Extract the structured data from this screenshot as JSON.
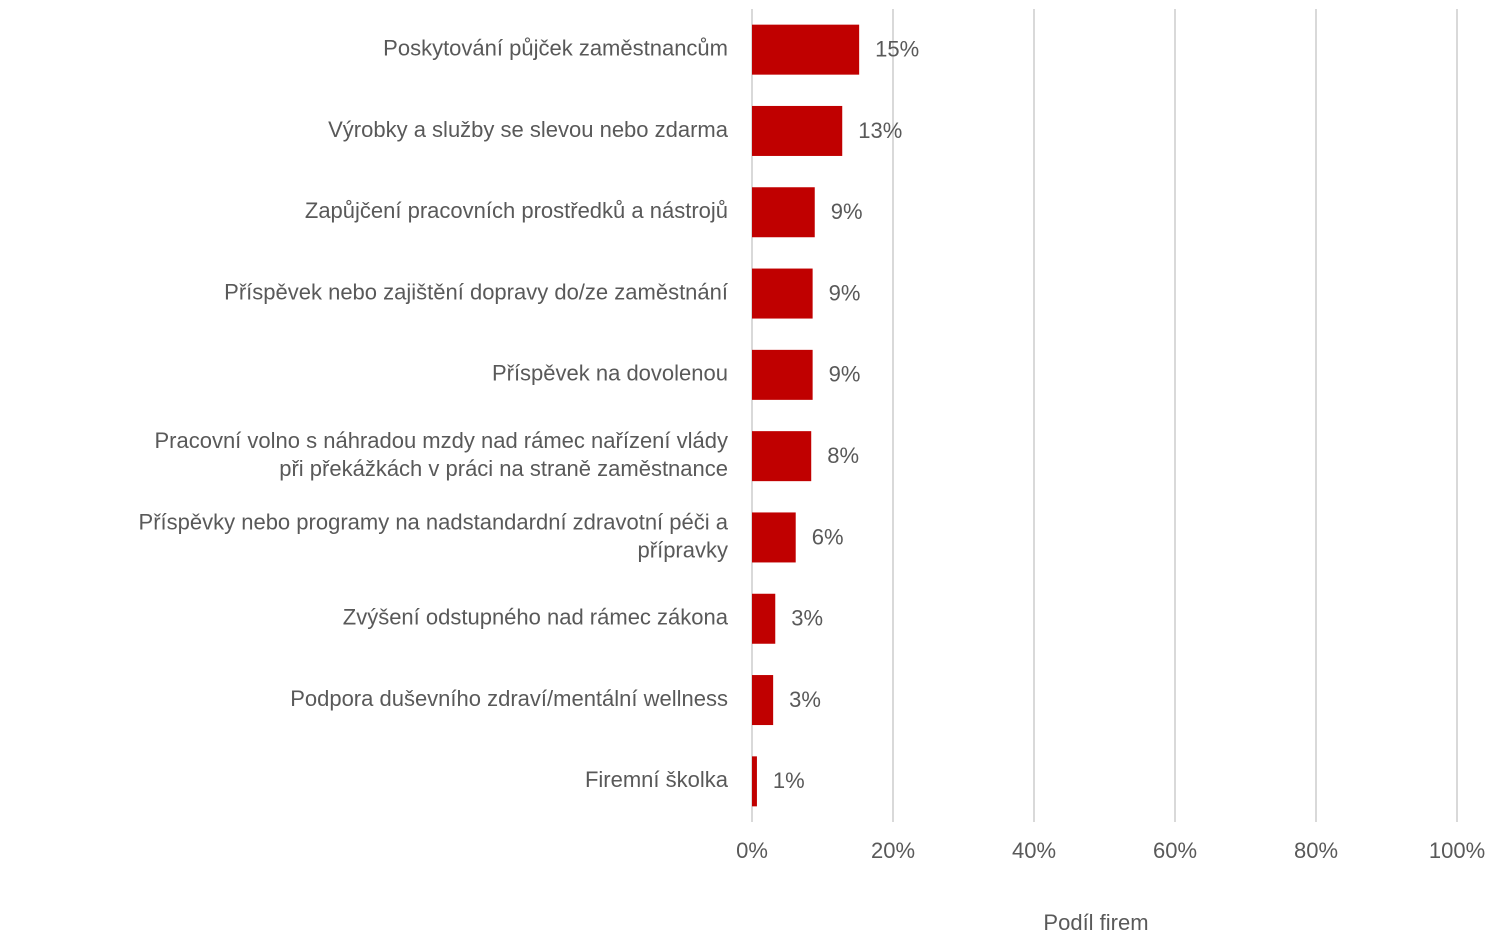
{
  "chart_data": {
    "type": "barh",
    "xlabel": "Podíl firem",
    "categories": [
      "Poskytování půjček zaměstnancům",
      "Výrobky a služby se slevou nebo zdarma",
      "Zapůjčení pracovních prostředků a nástrojů",
      "Příspěvek nebo zajištění dopravy do/ze zaměstnání",
      "Příspěvek na dovolenou",
      "Pracovní volno s náhradou mzdy nad rámec nařízení vlády\npři překážkách v práci na straně zaměstnance",
      "Příspěvky nebo programy na nadstandardní zdravotní péči a\npřípravky",
      "Zvýšení odstupného nad rámec zákona",
      "Podpora duševního zdraví/mentální wellness",
      "Firemní školka"
    ],
    "values": [
      15.2,
      12.8,
      8.9,
      8.6,
      8.6,
      8.4,
      6.2,
      3.3,
      3.0,
      0.7
    ],
    "value_labels": [
      "15%",
      "13%",
      "9%",
      "9%",
      "9%",
      "8%",
      "6%",
      "3%",
      "3%",
      "1%"
    ],
    "color": "#c00000",
    "xlim": [
      0,
      100
    ],
    "xticks": [
      {
        "value": 0,
        "label": "0%"
      },
      {
        "value": 20,
        "label": "20%"
      },
      {
        "value": 40,
        "label": "40%"
      },
      {
        "value": 60,
        "label": "60%"
      },
      {
        "value": 80,
        "label": "80%"
      },
      {
        "value": 100,
        "label": "100%"
      }
    ],
    "grid": true
  }
}
